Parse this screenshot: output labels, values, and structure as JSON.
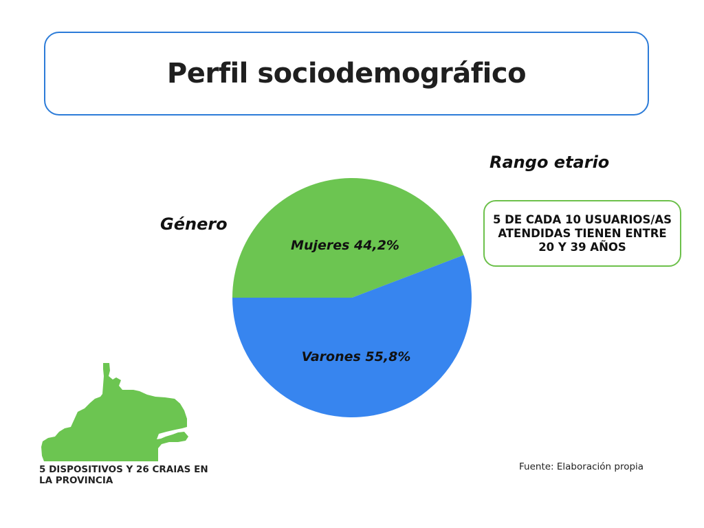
{
  "title": "Perfil sociodemográfico",
  "gender_label": "Género",
  "age_label": "Rango etario",
  "age_text": "5 DE CADA 10 USUARIOS/AS ATENDIDAS TIENEN ENTRE 20 Y 39 AÑOS",
  "map_caption": "5 DISPOSITIVOS Y 26 CRAIAS EN LA PROVINCIA",
  "source": "Fuente: Elaboración propia",
  "colors": {
    "mujeres": "#6cc551",
    "varones": "#3785ef",
    "title_border": "#2b7bd8",
    "age_border": "#6cc04a",
    "map": "#6cc551"
  },
  "chart_data": {
    "type": "pie",
    "title": "",
    "slices": [
      {
        "label": "Mujeres 44,2%",
        "value": 44.2
      },
      {
        "label": "Varones 55,8%",
        "value": 55.8
      }
    ]
  }
}
